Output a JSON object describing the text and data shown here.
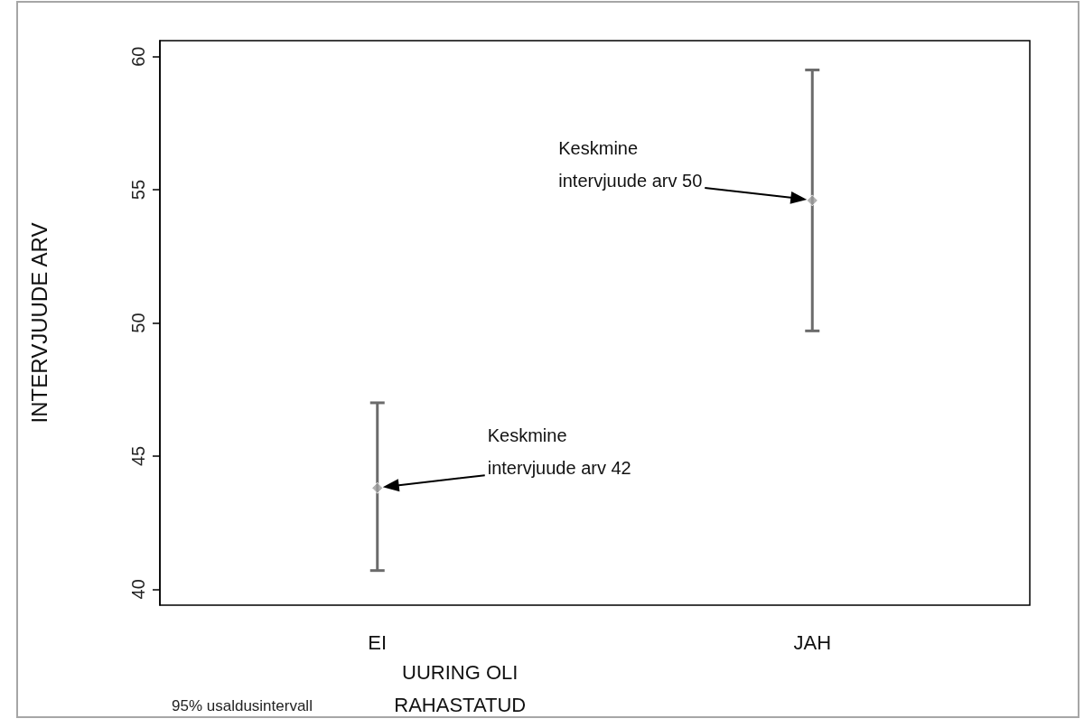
{
  "chart_data": {
    "type": "scatter",
    "categories": [
      "EI",
      "JAH"
    ],
    "values": [
      43.8,
      54.6
    ],
    "errors": [
      [
        40.7,
        47.0
      ],
      [
        49.7,
        59.5
      ]
    ],
    "color": "#9e9e9e",
    "marker": "diamond",
    "xlabel": "UURING OLI RAHASTATUD",
    "ylabel": "INTERVJUUDE ARV",
    "ylim": [
      39.4,
      60.6
    ],
    "yticks": [
      40,
      45,
      50,
      55,
      60
    ],
    "annotations": [
      "Keskmine intervjuude arv 42",
      "Keskmine intervjuude arv 50",
      "95% usaldusintervall"
    ]
  }
}
